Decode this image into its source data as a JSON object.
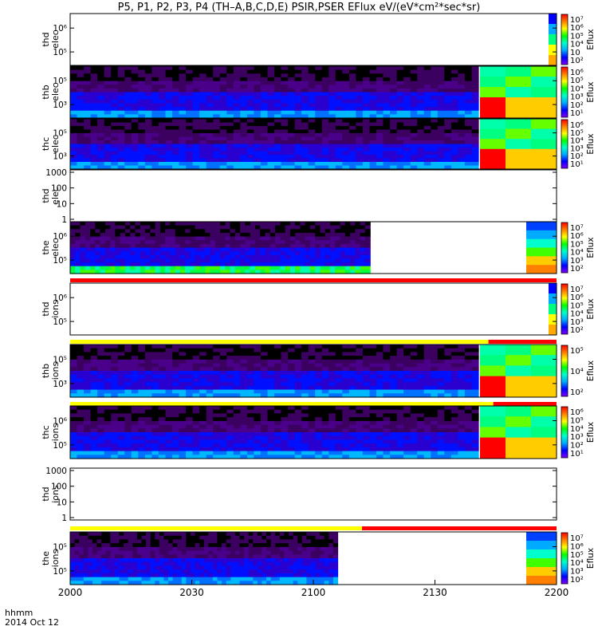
{
  "title": "P5, P1, P2, P3, P4 (TH–A,B,C,D,E) PSIR,PSER EFlux eV/(eV*cm²*sec*sr)",
  "colors": {
    "bar_yellow": "#ffff00",
    "bar_red": "#ff0000",
    "colorbar_stops": [
      "#8000ff",
      "#0000ff",
      "#00aaff",
      "#00ffcc",
      "#00ff00",
      "#ffff00",
      "#ff8000",
      "#ff0000"
    ]
  },
  "footer": {
    "label1": "hhmm",
    "label2": "2014 Oct 12"
  },
  "chart_data": {
    "type": "heatmap",
    "x_ticks": [
      "2000",
      "2030",
      "2100",
      "2130",
      "2200"
    ],
    "x_tick_minutes": [
      0,
      30,
      60,
      90,
      120
    ],
    "x_range_minutes": [
      0,
      120
    ],
    "panels": [
      {
        "id": "tha_elec",
        "label1": "thd",
        "label2": "elec",
        "ticks": [
          "10⁶",
          "10⁵"
        ],
        "colorbar_name": "Eflux",
        "colorbar_ticks": [
          "10⁷",
          "10⁶",
          "10⁵",
          "10⁴",
          "10⁳",
          "10²"
        ],
        "data_until_minute": null,
        "has_status_bar": false
      },
      {
        "id": "thb_elec",
        "label1": "thb",
        "label2": "elec",
        "ticks": [
          "10⁵",
          "10³"
        ],
        "colorbar_name": "Eflux",
        "colorbar_ticks": [
          "10⁶",
          "10⁵",
          "10⁴",
          "10³",
          "10²",
          "10¹"
        ],
        "data_until_minute": 120,
        "has_status_bar": false
      },
      {
        "id": "thc_elec",
        "label1": "thc",
        "label2": "elec",
        "ticks": [
          "10⁵",
          "10³"
        ],
        "colorbar_name": "Eflux",
        "colorbar_ticks": [
          "10⁶",
          "10⁵",
          "10⁴",
          "10³",
          "10²",
          "10¹"
        ],
        "data_until_minute": 120,
        "has_status_bar": false
      },
      {
        "id": "thd_elec",
        "label1": "thd",
        "label2": "elec",
        "ticks": [
          "1000",
          "100",
          "10",
          "1"
        ],
        "colorbar_name": "",
        "colorbar_ticks": [],
        "data_until_minute": null,
        "has_status_bar": false
      },
      {
        "id": "the_elec",
        "label1": "the",
        "label2": "elec",
        "ticks": [
          "10⁶",
          "10⁵"
        ],
        "colorbar_name": "Eflux",
        "colorbar_ticks": [
          "10⁷",
          "10⁶",
          "10⁵",
          "10⁴",
          "10³",
          "10²"
        ],
        "data_until_minute": 74,
        "has_status_bar": true
      },
      {
        "id": "tha_ions",
        "label1": "thd",
        "label2": "ions",
        "ticks": [
          "10⁶",
          "10⁵"
        ],
        "colorbar_name": "Eflux",
        "colorbar_ticks": [
          "10⁷",
          "10⁶",
          "10⁵",
          "10⁴",
          "10³",
          "10²"
        ],
        "data_until_minute": null,
        "has_status_bar": true
      },
      {
        "id": "thb_ions",
        "label1": "thb",
        "label2": "ions",
        "ticks": [
          "10⁵",
          "10³"
        ],
        "colorbar_name": "Eflux",
        "colorbar_ticks": [
          "10⁵",
          "10⁴",
          "10²"
        ],
        "data_until_minute": 120,
        "has_status_bar": true
      },
      {
        "id": "thc_ions",
        "label1": "thc",
        "label2": "ions",
        "ticks": [
          "10⁶",
          "10⁵"
        ],
        "colorbar_name": "Eflux",
        "colorbar_ticks": [
          "10⁶",
          "10⁵",
          "10⁴",
          "10³",
          "10²",
          "10¹"
        ],
        "data_until_minute": 120,
        "has_status_bar": false
      },
      {
        "id": "thd_ions",
        "label1": "thd",
        "label2": "ions",
        "ticks": [
          "1000",
          "100",
          "10",
          "1"
        ],
        "colorbar_name": "",
        "colorbar_ticks": [],
        "data_until_minute": null,
        "has_status_bar": true
      },
      {
        "id": "the_ions",
        "label1": "the",
        "label2": "ions",
        "ticks": [
          "10⁵",
          "10⁵"
        ],
        "colorbar_name": "Eflux",
        "colorbar_ticks": [
          "10⁷",
          "10⁶",
          "10⁵",
          "10⁴",
          "10³",
          "10²"
        ],
        "data_until_minute": 66,
        "has_status_bar": false
      }
    ]
  }
}
